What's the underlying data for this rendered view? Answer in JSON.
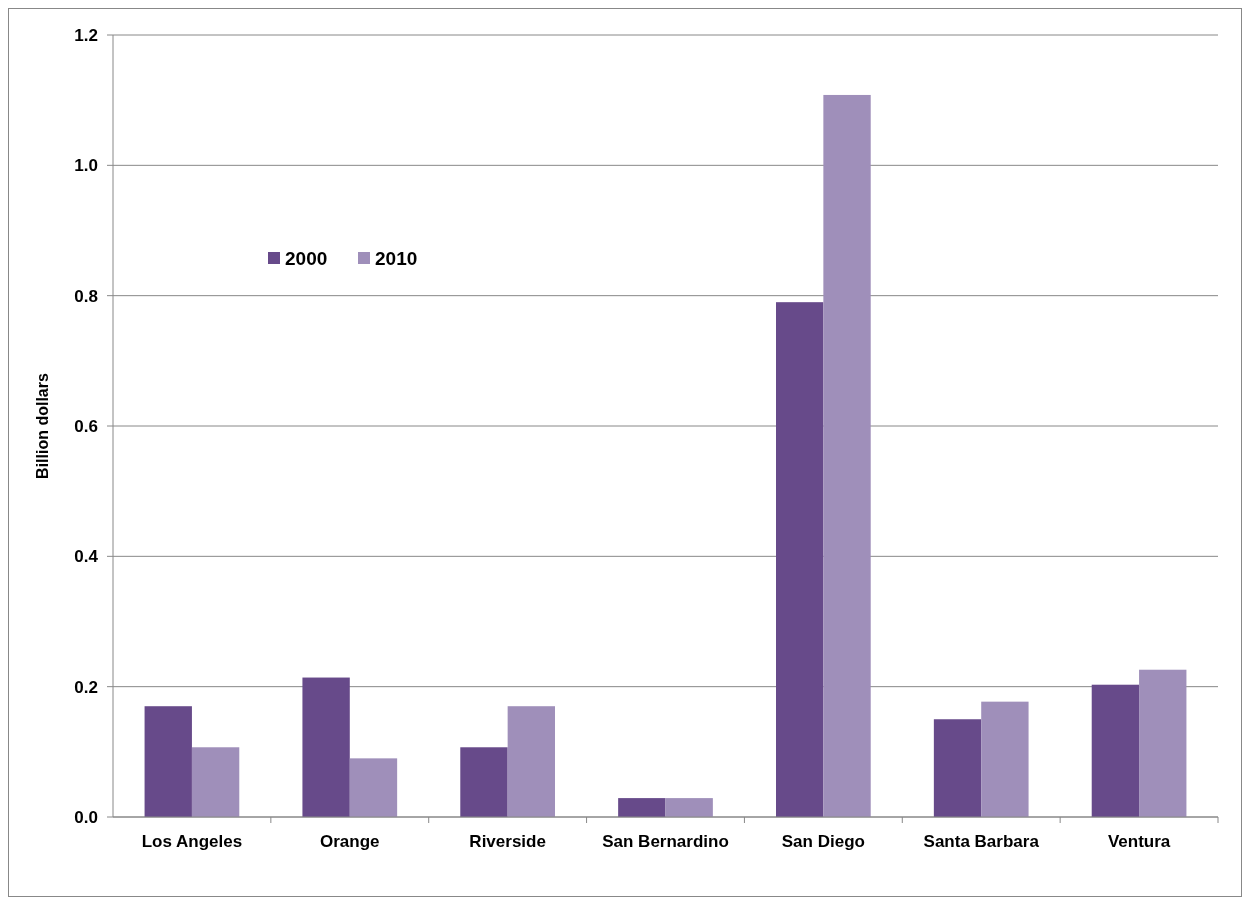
{
  "chart_data": {
    "type": "bar",
    "ylabel": "Billion dollars",
    "categories": [
      "Los Angeles",
      "Orange",
      "Riverside",
      "San Bernardino",
      "San Diego",
      "Santa Barbara",
      "Ventura"
    ],
    "series": [
      {
        "name": "2000",
        "color": "#674a8a",
        "values": [
          0.17,
          0.214,
          0.107,
          0.029,
          0.79,
          0.15,
          0.203
        ]
      },
      {
        "name": "2010",
        "color": "#9f8fba",
        "values": [
          0.107,
          0.09,
          0.17,
          0.029,
          1.108,
          0.177,
          0.226
        ]
      }
    ],
    "ylim": [
      0,
      1.2
    ],
    "yticks": [
      {
        "value": 0,
        "label": "0.0"
      },
      0.2,
      0.4,
      0.6,
      0.8,
      {
        "value": 1,
        "label": "1.0"
      },
      1.2
    ],
    "grid": "y",
    "legend": "top left"
  }
}
